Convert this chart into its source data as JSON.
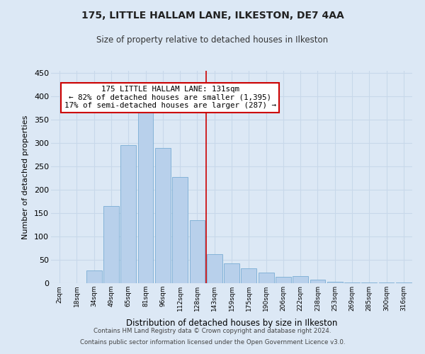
{
  "title": "175, LITTLE HALLAM LANE, ILKESTON, DE7 4AA",
  "subtitle": "Size of property relative to detached houses in Ilkeston",
  "xlabel": "Distribution of detached houses by size in Ilkeston",
  "ylabel": "Number of detached properties",
  "bar_labels": [
    "2sqm",
    "18sqm",
    "34sqm",
    "49sqm",
    "65sqm",
    "81sqm",
    "96sqm",
    "112sqm",
    "128sqm",
    "143sqm",
    "159sqm",
    "175sqm",
    "190sqm",
    "206sqm",
    "222sqm",
    "238sqm",
    "253sqm",
    "269sqm",
    "285sqm",
    "300sqm",
    "316sqm"
  ],
  "bar_values": [
    0,
    0,
    28,
    165,
    295,
    370,
    289,
    228,
    135,
    62,
    43,
    32,
    23,
    14,
    15,
    7,
    3,
    2,
    1,
    1,
    1
  ],
  "bar_color": "#b8d0eb",
  "bar_edge_color": "#7aadd4",
  "property_line_x": 8.5,
  "property_line_color": "#cc0000",
  "annotation_title": "175 LITTLE HALLAM LANE: 131sqm",
  "annotation_line1": "← 82% of detached houses are smaller (1,395)",
  "annotation_line2": "17% of semi-detached houses are larger (287) →",
  "annotation_box_color": "#ffffff",
  "annotation_box_edge": "#cc0000",
  "ylim": [
    0,
    455
  ],
  "xlim": [
    -0.5,
    20.5
  ],
  "grid_color": "#c8d8ea",
  "footer1": "Contains HM Land Registry data © Crown copyright and database right 2024.",
  "footer2": "Contains public sector information licensed under the Open Government Licence v3.0.",
  "background_color": "#dce8f5"
}
